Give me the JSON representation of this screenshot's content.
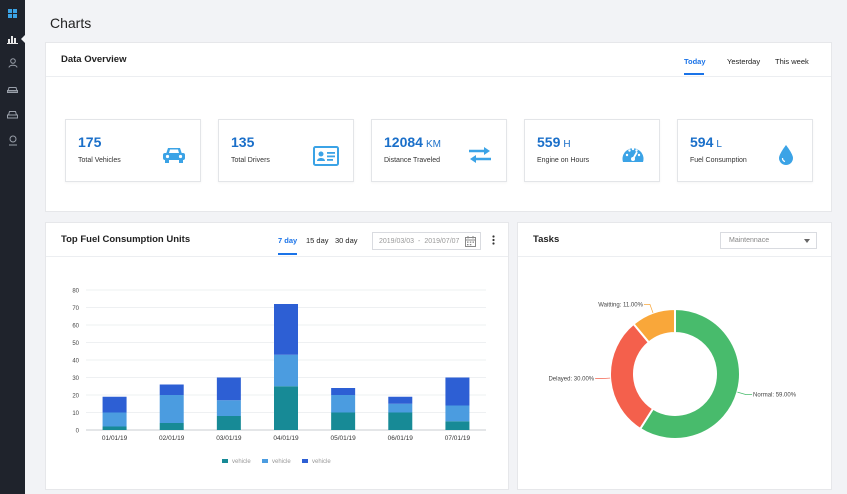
{
  "page": {
    "title": "Charts"
  },
  "sidebar": {
    "items": [
      {
        "icon": "dashboard-icon",
        "active": false
      },
      {
        "icon": "bar-chart-icon",
        "active": true
      },
      {
        "icon": "user-icon",
        "active": false
      },
      {
        "icon": "car-icon",
        "active": false
      },
      {
        "icon": "car-front-icon",
        "active": false
      },
      {
        "icon": "support-icon",
        "active": false
      }
    ]
  },
  "overview": {
    "title": "Data Overview",
    "tabs": [
      {
        "label": "Today",
        "active": true
      },
      {
        "label": "Yesterday",
        "active": false
      },
      {
        "label": "This week",
        "active": false
      }
    ],
    "stats": [
      {
        "value": "175",
        "unit": "",
        "label": "Total Vehicles",
        "icon": "car-icon"
      },
      {
        "value": "135",
        "unit": "",
        "label": "Total Drivers",
        "icon": "id-card-icon"
      },
      {
        "value": "12084",
        "unit": "KM",
        "label": "Distance Traveled",
        "icon": "swap-arrows-icon"
      },
      {
        "value": "559",
        "unit": "H",
        "label": "Engine on Hours",
        "icon": "speedometer-icon"
      },
      {
        "value": "594",
        "unit": "L",
        "label": "Fuel Consumption",
        "icon": "drop-icon"
      }
    ]
  },
  "fuel_chart_card": {
    "title": "Top Fuel Consumption Units",
    "tabs": [
      {
        "label": "7 day",
        "active": true
      },
      {
        "label": "15 day",
        "active": false
      },
      {
        "label": "30 day",
        "active": false
      }
    ],
    "date_start": "2019/03/03",
    "date_sep": "-",
    "date_end": "2019/07/07"
  },
  "tasks_card": {
    "title": "Tasks",
    "select_value": "Maintennace"
  },
  "colors": {
    "accent": "#1a73e8",
    "stat_icon": "#3ba3e6",
    "series": [
      "#178a96",
      "#4b9ce0",
      "#2d5fd4"
    ],
    "donut": [
      "#48bb6c",
      "#f4604c",
      "#f9a73a"
    ]
  },
  "chart_data": [
    {
      "type": "bar",
      "stacked": true,
      "categories": [
        "01/01/19",
        "02/01/19",
        "03/01/19",
        "04/01/19",
        "05/01/19",
        "06/01/19",
        "07/01/19"
      ],
      "series": [
        {
          "name": "vehicle",
          "values": [
            2,
            4,
            8,
            25,
            10,
            10,
            5
          ]
        },
        {
          "name": "vehicle",
          "values": [
            8,
            16,
            9,
            18,
            10,
            5,
            9
          ]
        },
        {
          "name": "vehicle",
          "values": [
            9,
            6,
            13,
            29,
            4,
            4,
            16
          ]
        }
      ],
      "ylim": [
        0,
        80
      ],
      "yticks": [
        0,
        10,
        20,
        30,
        40,
        50,
        60,
        70,
        80
      ],
      "grid": true,
      "legend_position": "bottom"
    },
    {
      "type": "pie",
      "donut": true,
      "labels": [
        "Normal",
        "Delayed",
        "Waiting"
      ],
      "values": [
        59.0,
        30.0,
        11.0
      ],
      "slice_labels": [
        "Normal: 59.00%",
        "Delayed: 30.00%",
        "Waitting: 11.00%"
      ]
    }
  ]
}
